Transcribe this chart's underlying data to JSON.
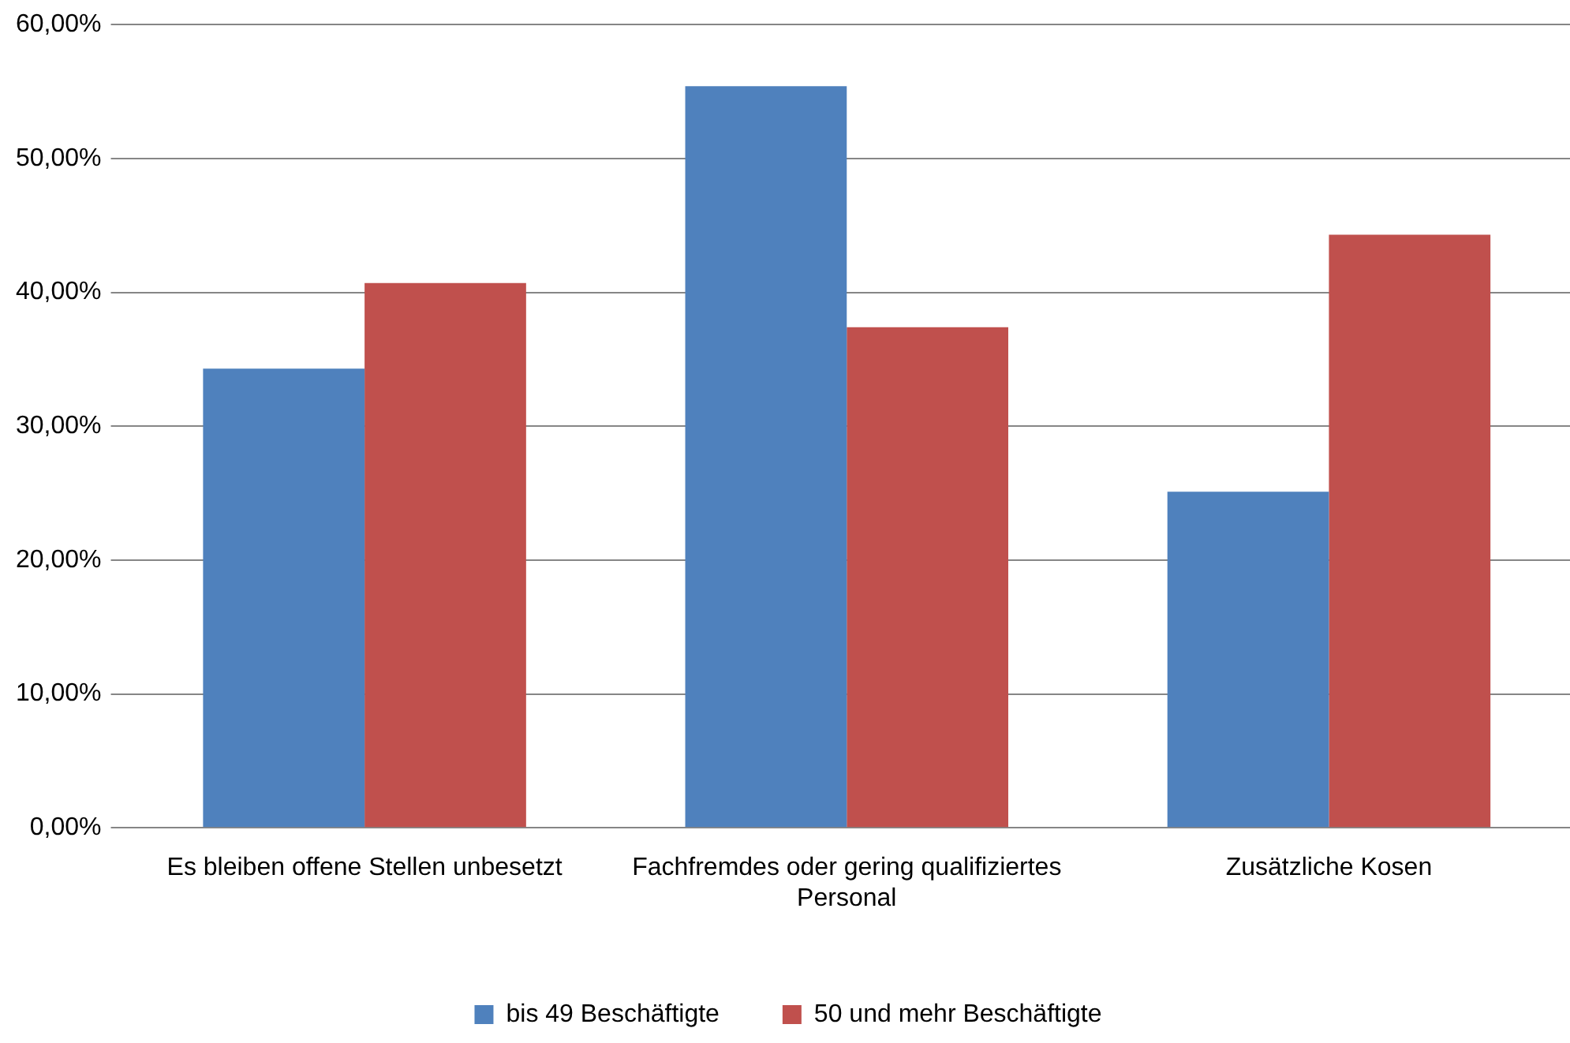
{
  "chart_data": {
    "type": "bar",
    "categories": [
      "Es bleiben offene Stellen unbesetzt",
      "Fachfremdes oder gering qualifiziertes Personal",
      "Zusätzliche Kosen"
    ],
    "series": [
      {
        "name": "bis 49 Beschäftigte",
        "color": "#4f81bd",
        "values": [
          34.3,
          55.4,
          25.1
        ]
      },
      {
        "name": "50 und mehr Beschäftigte",
        "color": "#c0504d",
        "values": [
          40.7,
          37.4,
          44.3
        ]
      }
    ],
    "ylim": [
      0,
      60
    ],
    "yticks": [
      {
        "value": 0,
        "label": "0,00%"
      },
      {
        "value": 10,
        "label": "10,00%"
      },
      {
        "value": 20,
        "label": "20,00%"
      },
      {
        "value": 30,
        "label": "30,00%"
      },
      {
        "value": 40,
        "label": "40,00%"
      },
      {
        "value": 50,
        "label": "50,00%"
      },
      {
        "value": 60,
        "label": "60,00%"
      }
    ],
    "grid": "y",
    "legend": "bottom"
  }
}
